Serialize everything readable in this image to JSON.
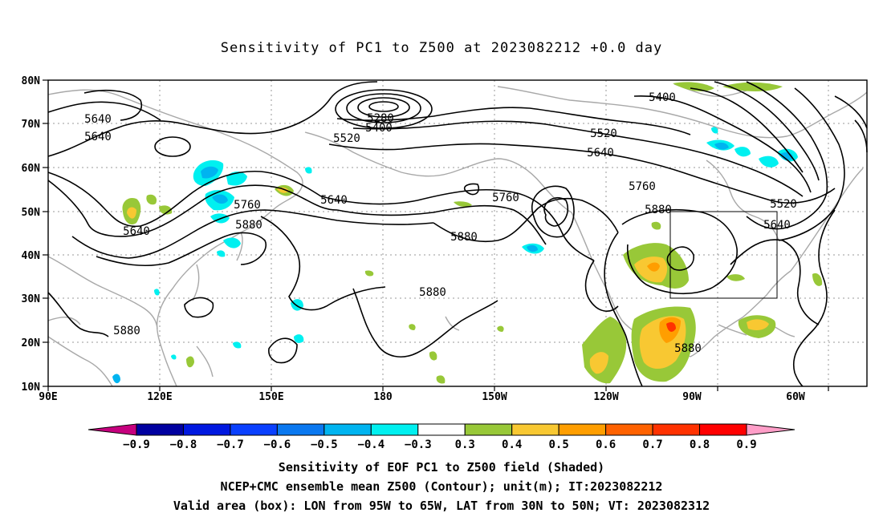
{
  "title": "Sensitivity of PC1 to Z500 at 2023082212 +0.0 day",
  "lat_labels": [
    "80N",
    "70N",
    "60N",
    "50N",
    "40N",
    "30N",
    "20N",
    "10N"
  ],
  "lon_labels": [
    "90E",
    "120E",
    "150E",
    "180",
    "150W",
    "120W",
    "90W",
    "60W"
  ],
  "contour_labels": [
    "5280",
    "5400",
    "5400",
    "5520",
    "5520",
    "5520",
    "5640",
    "5640",
    "5640",
    "5640",
    "5640",
    "5640",
    "5760",
    "5760",
    "5760",
    "5880",
    "5880",
    "5880",
    "5880",
    "5880",
    "5880"
  ],
  "colorbar": {
    "ticks": [
      "−0.9",
      "−0.8",
      "−0.7",
      "−0.6",
      "−0.5",
      "−0.4",
      "−0.3",
      "0.3",
      "0.4",
      "0.5",
      "0.6",
      "0.7",
      "0.8",
      "0.9"
    ],
    "colors": [
      "#c6007e",
      "#0000a0",
      "#0018e0",
      "#0a40ff",
      "#0a78f0",
      "#00b4f0",
      "#00f0f0",
      "#ffffff",
      "#98c838",
      "#f8c832",
      "#ff9e00",
      "#ff6200",
      "#ff3200",
      "#ff0000",
      "#ff9ec8"
    ]
  },
  "captions": [
    "Sensitivity of EOF PC1 to Z500 field (Shaded)",
    "NCEP+CMC ensemble mean Z500 (Contour); unit(m); IT:2023082212",
    "Valid area (box): LON from 95W to 65W, LAT from 30N to 50N; VT: 2023082312"
  ],
  "valid_area": {
    "lon_min": -95,
    "lon_max": -65,
    "lat_min": 30,
    "lat_max": 50
  },
  "map_extent": {
    "lon_min": 90,
    "lon_max": 310,
    "lat_min": 10,
    "lat_max": 80
  }
}
